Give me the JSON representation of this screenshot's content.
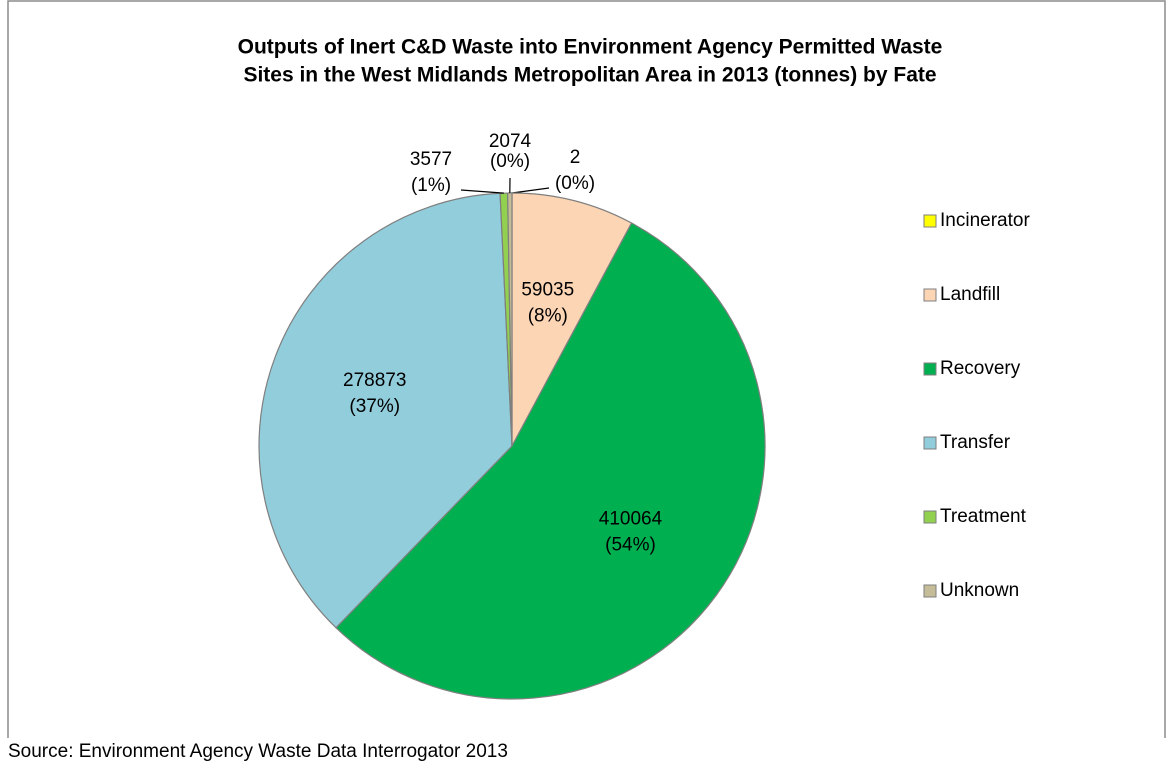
{
  "chart_data": {
    "type": "pie",
    "title": [
      "Outputs of Inert C&D Waste into Environment Agency Permitted Waste",
      "Sites in the West Midlands Metropolitan Area in 2013 (tonnes) by Fate"
    ],
    "categories": [
      "Incinerator",
      "Landfill",
      "Recovery",
      "Transfer",
      "Treatment",
      "Unknown"
    ],
    "values": [
      2,
      59035,
      410064,
      278873,
      3577,
      2074
    ],
    "percent_labels": [
      "(0%)",
      "(8%)",
      "(54%)",
      "(37%)",
      "(1%)",
      "(0%)"
    ],
    "colors": [
      "#ffff00",
      "#fcd5b5",
      "#00b050",
      "#92cddc",
      "#92d050",
      "#c4bd97"
    ],
    "legend": "right",
    "source": "Source: Environment Agency Waste Data Interrogator 2013"
  }
}
